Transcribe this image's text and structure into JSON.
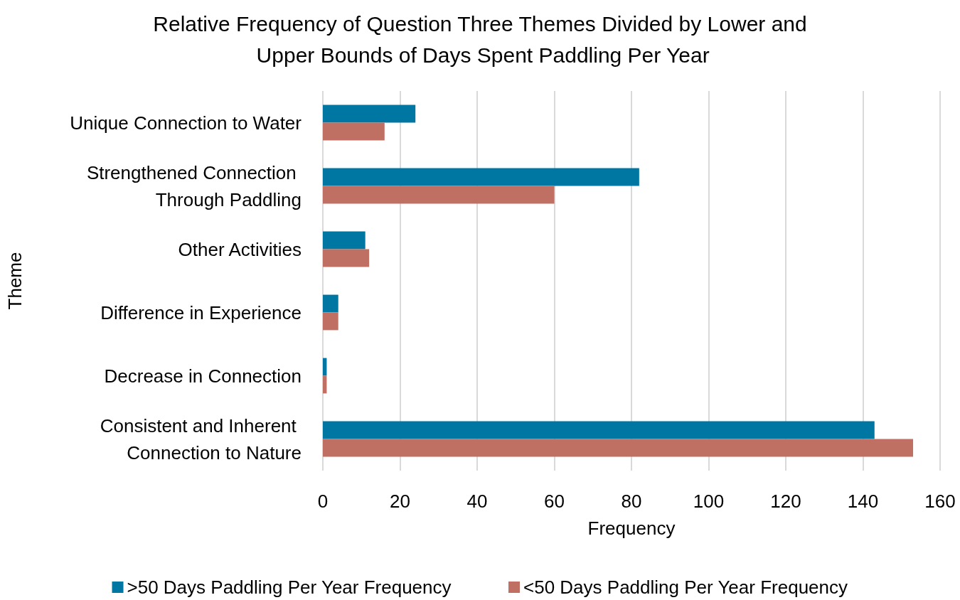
{
  "chart_data": {
    "type": "bar",
    "orientation": "horizontal",
    "title": "Relative Frequency of Question Three Themes Divided by Lower and Upper Bounds of Days Spent Paddling Per Year",
    "xlabel": "Frequency",
    "ylabel": "Theme",
    "categories": [
      "Unique Connection to Water",
      "Strengthened Connection Through Paddling",
      "Other Activities",
      "Difference in Experience",
      "Decrease in Connection",
      "Consistent and Inherent Connection to Nature"
    ],
    "series": [
      {
        "name": ">50 Days Paddling Per Year Frequency",
        "color": "#0076a3",
        "values": [
          24,
          82,
          11,
          4,
          1,
          143
        ]
      },
      {
        "name": "<50 Days Paddling Per Year Frequency",
        "color": "#c07062",
        "values": [
          16,
          60,
          12,
          4,
          1,
          153
        ]
      }
    ],
    "xlim": [
      0,
      160
    ],
    "xticks": [
      0,
      20,
      40,
      60,
      80,
      100,
      120,
      140,
      160
    ],
    "grid": "x",
    "legend": "bottom"
  }
}
